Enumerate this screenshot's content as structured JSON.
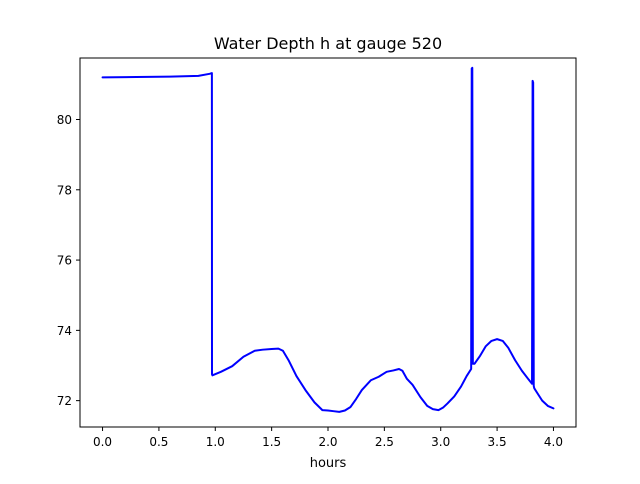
{
  "chart_data": {
    "type": "line",
    "title": "Water Depth h at gauge 520",
    "xlabel": "hours",
    "ylabel": "",
    "xlim": [
      -0.2,
      4.2
    ],
    "ylim": [
      71.25,
      81.75
    ],
    "xticks": [
      0.0,
      0.5,
      1.0,
      1.5,
      2.0,
      2.5,
      3.0,
      3.5,
      4.0
    ],
    "xtick_labels": [
      "0.0",
      "0.5",
      "1.0",
      "1.5",
      "2.0",
      "2.5",
      "3.0",
      "3.5",
      "4.0"
    ],
    "yticks": [
      72,
      74,
      76,
      78,
      80
    ],
    "ytick_labels": [
      "72",
      "74",
      "76",
      "78",
      "80"
    ],
    "grid": false,
    "legend": "none",
    "series": [
      {
        "color": "#0000ff",
        "x": [
          0.0,
          0.3,
          0.6,
          0.85,
          0.95,
          0.97,
          0.971,
          0.975,
          1.05,
          1.15,
          1.25,
          1.35,
          1.42,
          1.5,
          1.56,
          1.6,
          1.65,
          1.72,
          1.8,
          1.88,
          1.95,
          2.0,
          2.05,
          2.1,
          2.15,
          2.2,
          2.25,
          2.3,
          2.38,
          2.45,
          2.52,
          2.58,
          2.63,
          2.66,
          2.7,
          2.75,
          2.82,
          2.88,
          2.93,
          2.98,
          3.02,
          3.06,
          3.12,
          3.18,
          3.23,
          3.27,
          3.275,
          3.28,
          3.285,
          3.29,
          3.3,
          3.35,
          3.4,
          3.45,
          3.5,
          3.55,
          3.6,
          3.66,
          3.72,
          3.78,
          3.81,
          3.815,
          3.82,
          3.825,
          3.83,
          3.86,
          3.9,
          3.95,
          4.0
        ],
        "y": [
          81.2,
          81.21,
          81.22,
          81.24,
          81.3,
          81.32,
          72.75,
          72.72,
          72.82,
          72.98,
          73.25,
          73.42,
          73.45,
          73.47,
          73.48,
          73.42,
          73.15,
          72.7,
          72.3,
          71.95,
          71.73,
          71.72,
          71.7,
          71.68,
          71.72,
          71.82,
          72.05,
          72.3,
          72.58,
          72.68,
          72.82,
          72.86,
          72.9,
          72.85,
          72.62,
          72.45,
          72.1,
          71.85,
          71.76,
          71.73,
          71.8,
          71.92,
          72.12,
          72.4,
          72.7,
          72.9,
          81.45,
          81.47,
          73.05,
          73.05,
          73.05,
          73.28,
          73.55,
          73.7,
          73.75,
          73.7,
          73.5,
          73.15,
          72.85,
          72.6,
          72.48,
          81.1,
          81.05,
          72.42,
          72.35,
          72.2,
          72.0,
          71.85,
          71.78
        ]
      }
    ]
  }
}
